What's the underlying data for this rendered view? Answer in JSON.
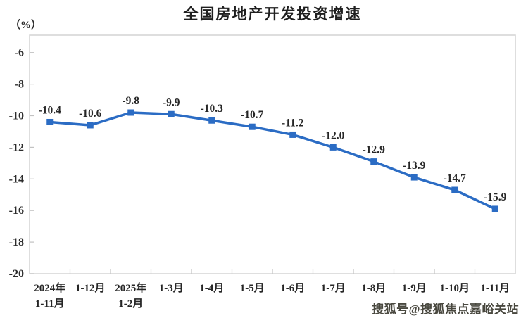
{
  "chart_data": {
    "type": "line",
    "title": "全国房地产开发投资增速",
    "unit_label": "（%）",
    "categories": [
      [
        "2024年",
        "1-11月"
      ],
      [
        "1-12月"
      ],
      [
        "2025年",
        "1-2月"
      ],
      [
        "1-3月"
      ],
      [
        "1-4月"
      ],
      [
        "1-5月"
      ],
      [
        "1-6月"
      ],
      [
        "1-7月"
      ],
      [
        "1-8月"
      ],
      [
        "1-9月"
      ],
      [
        "1-10月"
      ],
      [
        "1-11月"
      ]
    ],
    "values": [
      -10.4,
      -10.6,
      -9.8,
      -9.9,
      -10.3,
      -10.7,
      -11.2,
      -12.0,
      -12.9,
      -13.9,
      -14.7,
      -15.9
    ],
    "point_labels": [
      "-10.4",
      "-10.6",
      "-9.8",
      "-9.9",
      "-10.3",
      "-10.7",
      "-11.2",
      "-12.0",
      "-12.9",
      "-13.9",
      "-14.7",
      "-15.9"
    ],
    "y_ticks": [
      -6,
      -8,
      -10,
      -12,
      -14,
      -16,
      -18,
      -20
    ],
    "ylim": [
      -20,
      -4.9
    ],
    "grid": false,
    "legend_position": "none",
    "line_color": "#2b6cc4",
    "axis_color": "#d4d4d4",
    "tick_color": "#c2c2c2",
    "text_color": "#2b2b2b"
  },
  "watermark": {
    "text": "搜狐号@搜狐焦点嘉峪关站"
  }
}
